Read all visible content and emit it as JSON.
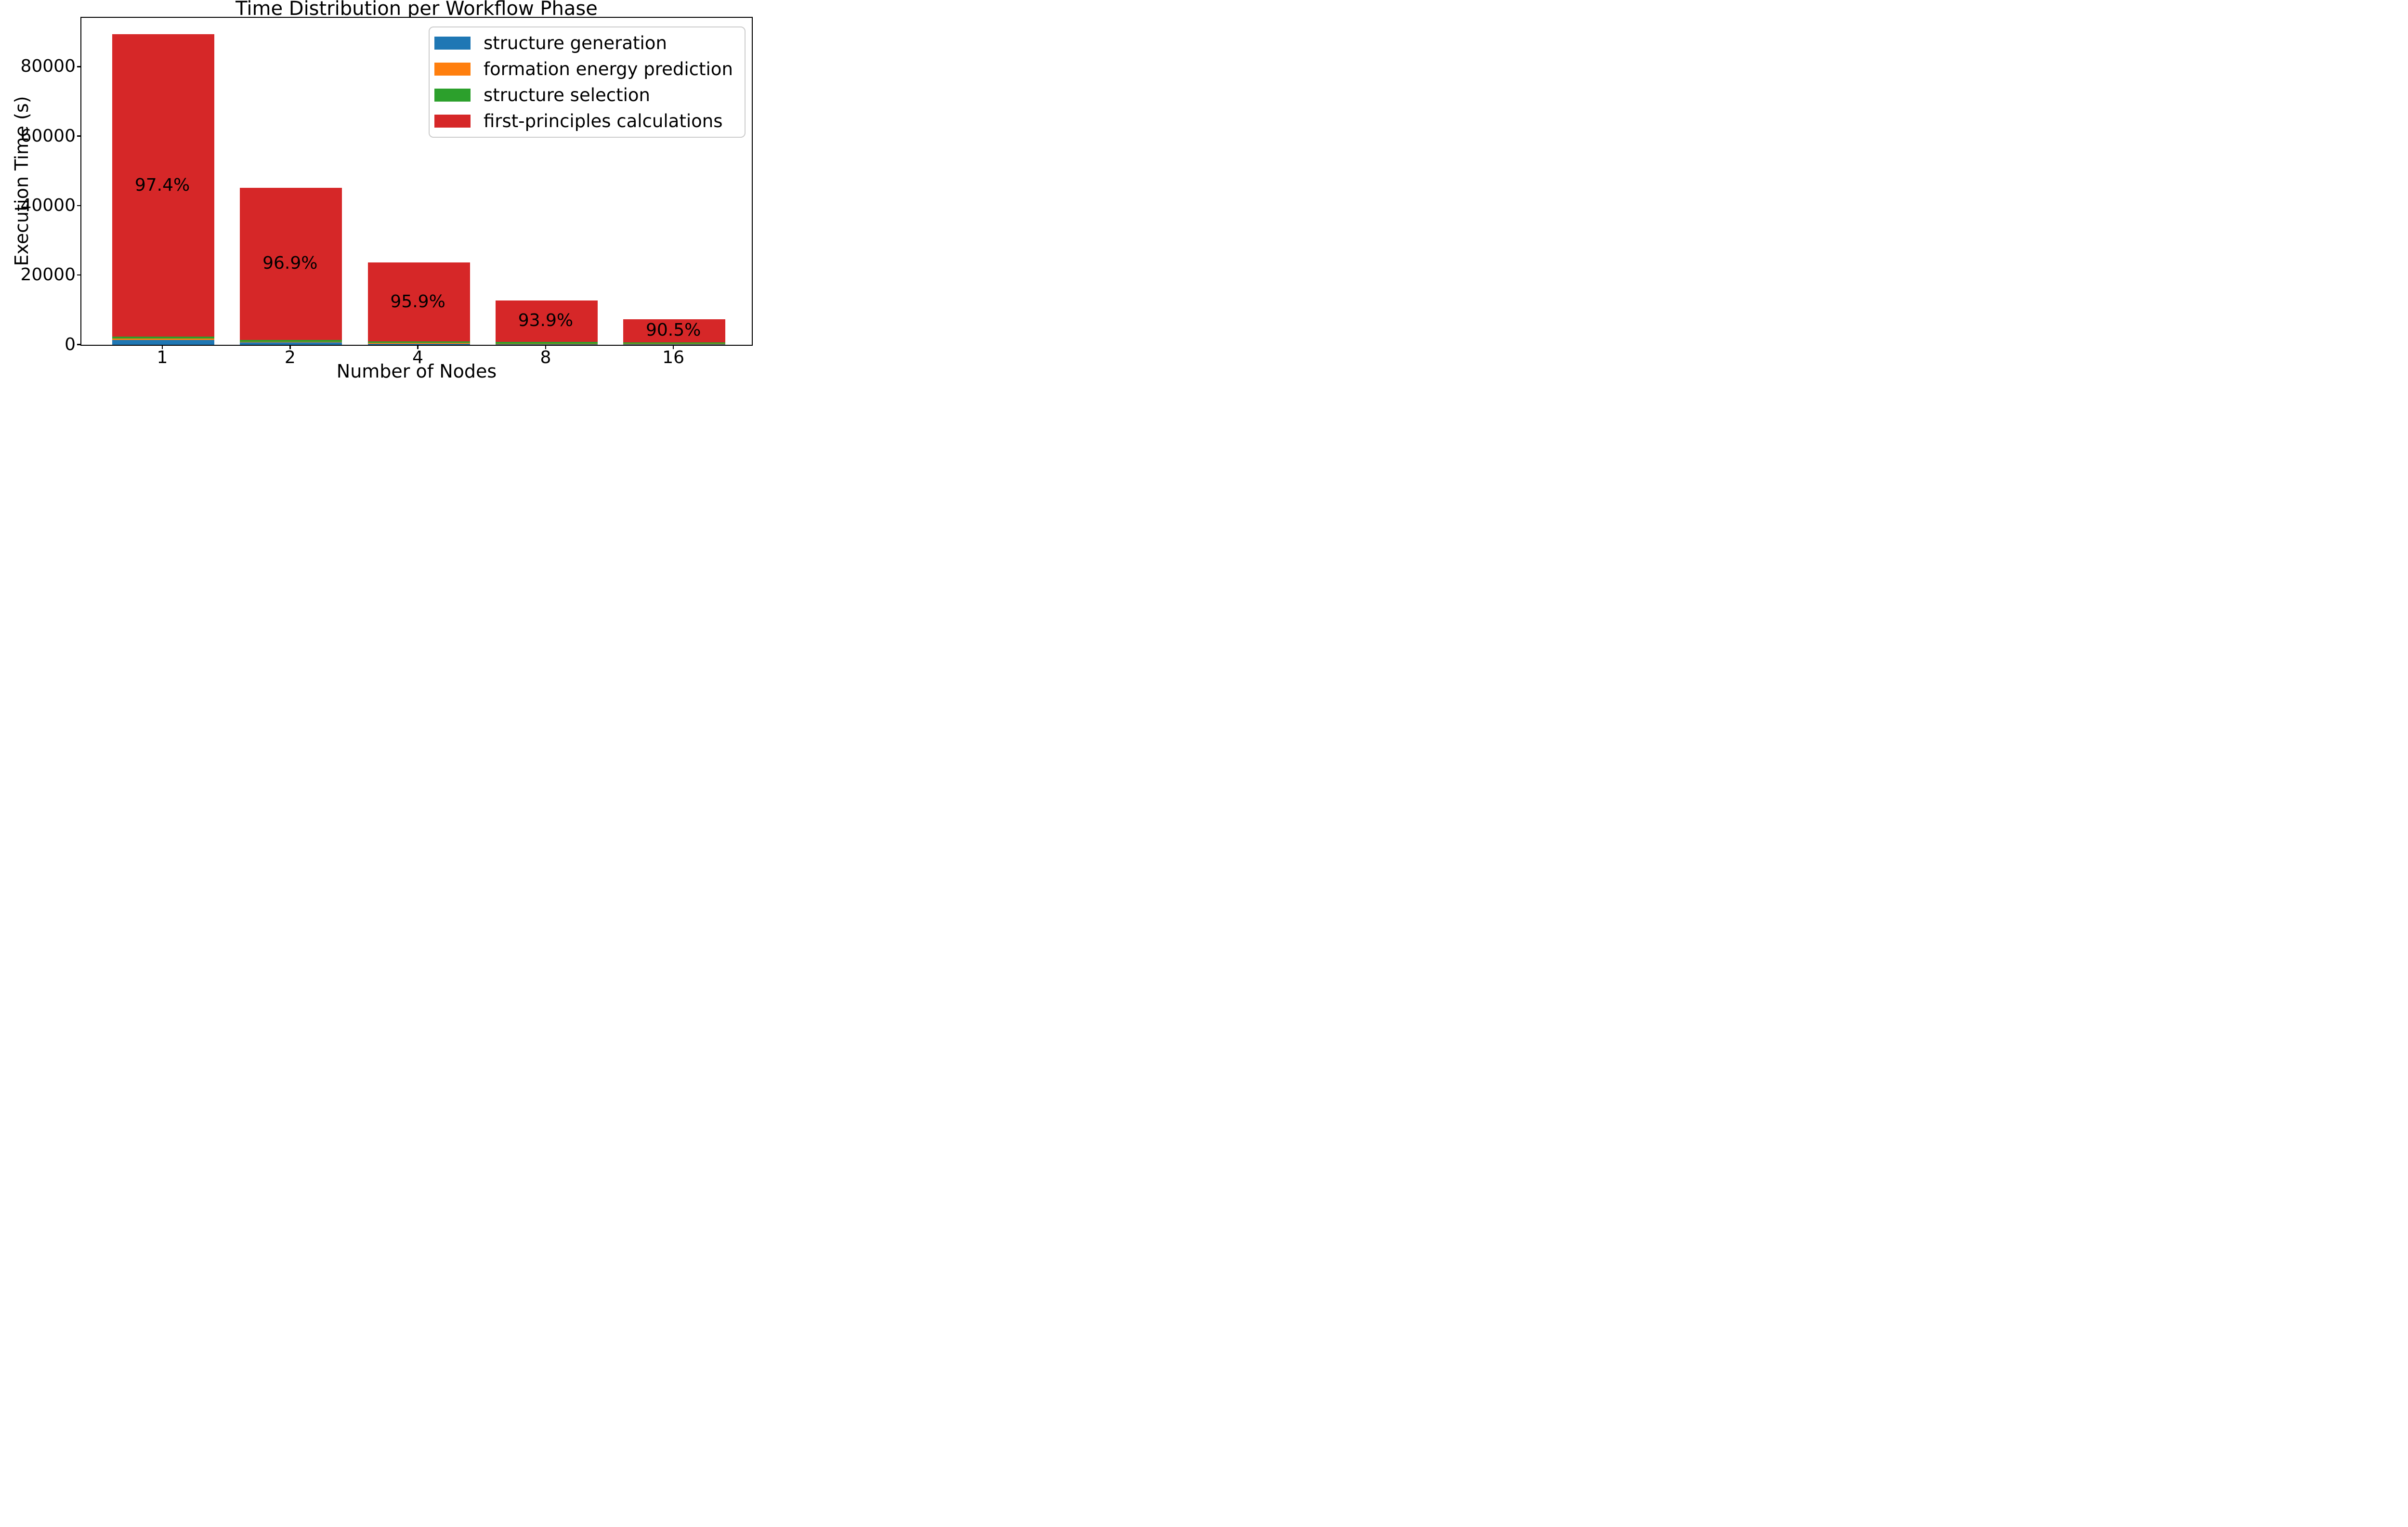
{
  "chart_data": {
    "type": "bar",
    "stacked": true,
    "title": "Time Distribution per Workflow Phase",
    "xlabel": "Number of Nodes",
    "ylabel": "Execution Time (s)",
    "categories": [
      "1",
      "2",
      "4",
      "8",
      "16"
    ],
    "ylim": [
      0,
      94000
    ],
    "ytick_values": [
      0,
      20000,
      40000,
      60000,
      80000
    ],
    "ytick_labels": [
      "0",
      "20000",
      "40000",
      "60000",
      "80000"
    ],
    "grid": false,
    "legend_position": "upper right",
    "series": [
      {
        "name": "structure generation",
        "color": "#1f77b4",
        "values": [
          1350,
          630,
          315,
          165,
          100
        ]
      },
      {
        "name": "formation energy prediction",
        "color": "#ff7f0e",
        "values": [
          500,
          260,
          182,
          130,
          125
        ]
      },
      {
        "name": "structure selection",
        "color": "#2ca02c",
        "values": [
          474,
          511,
          475,
          487,
          475
        ]
      },
      {
        "name": "first-principles calculations",
        "color": "#d62728",
        "values": [
          87076,
          43789,
          22728,
          12038,
          6670
        ]
      }
    ],
    "bar_totals_seconds_approx": [
      89400,
      45190,
      23700,
      12820,
      7370
    ],
    "bar_labels": {
      "on_series": "first-principles calculations",
      "values": [
        "97.4%",
        "96.9%",
        "95.9%",
        "93.9%",
        "90.5%"
      ]
    },
    "text_color": "#000000",
    "axis_color": "#000000",
    "legend_border_color": "#cccccc"
  }
}
